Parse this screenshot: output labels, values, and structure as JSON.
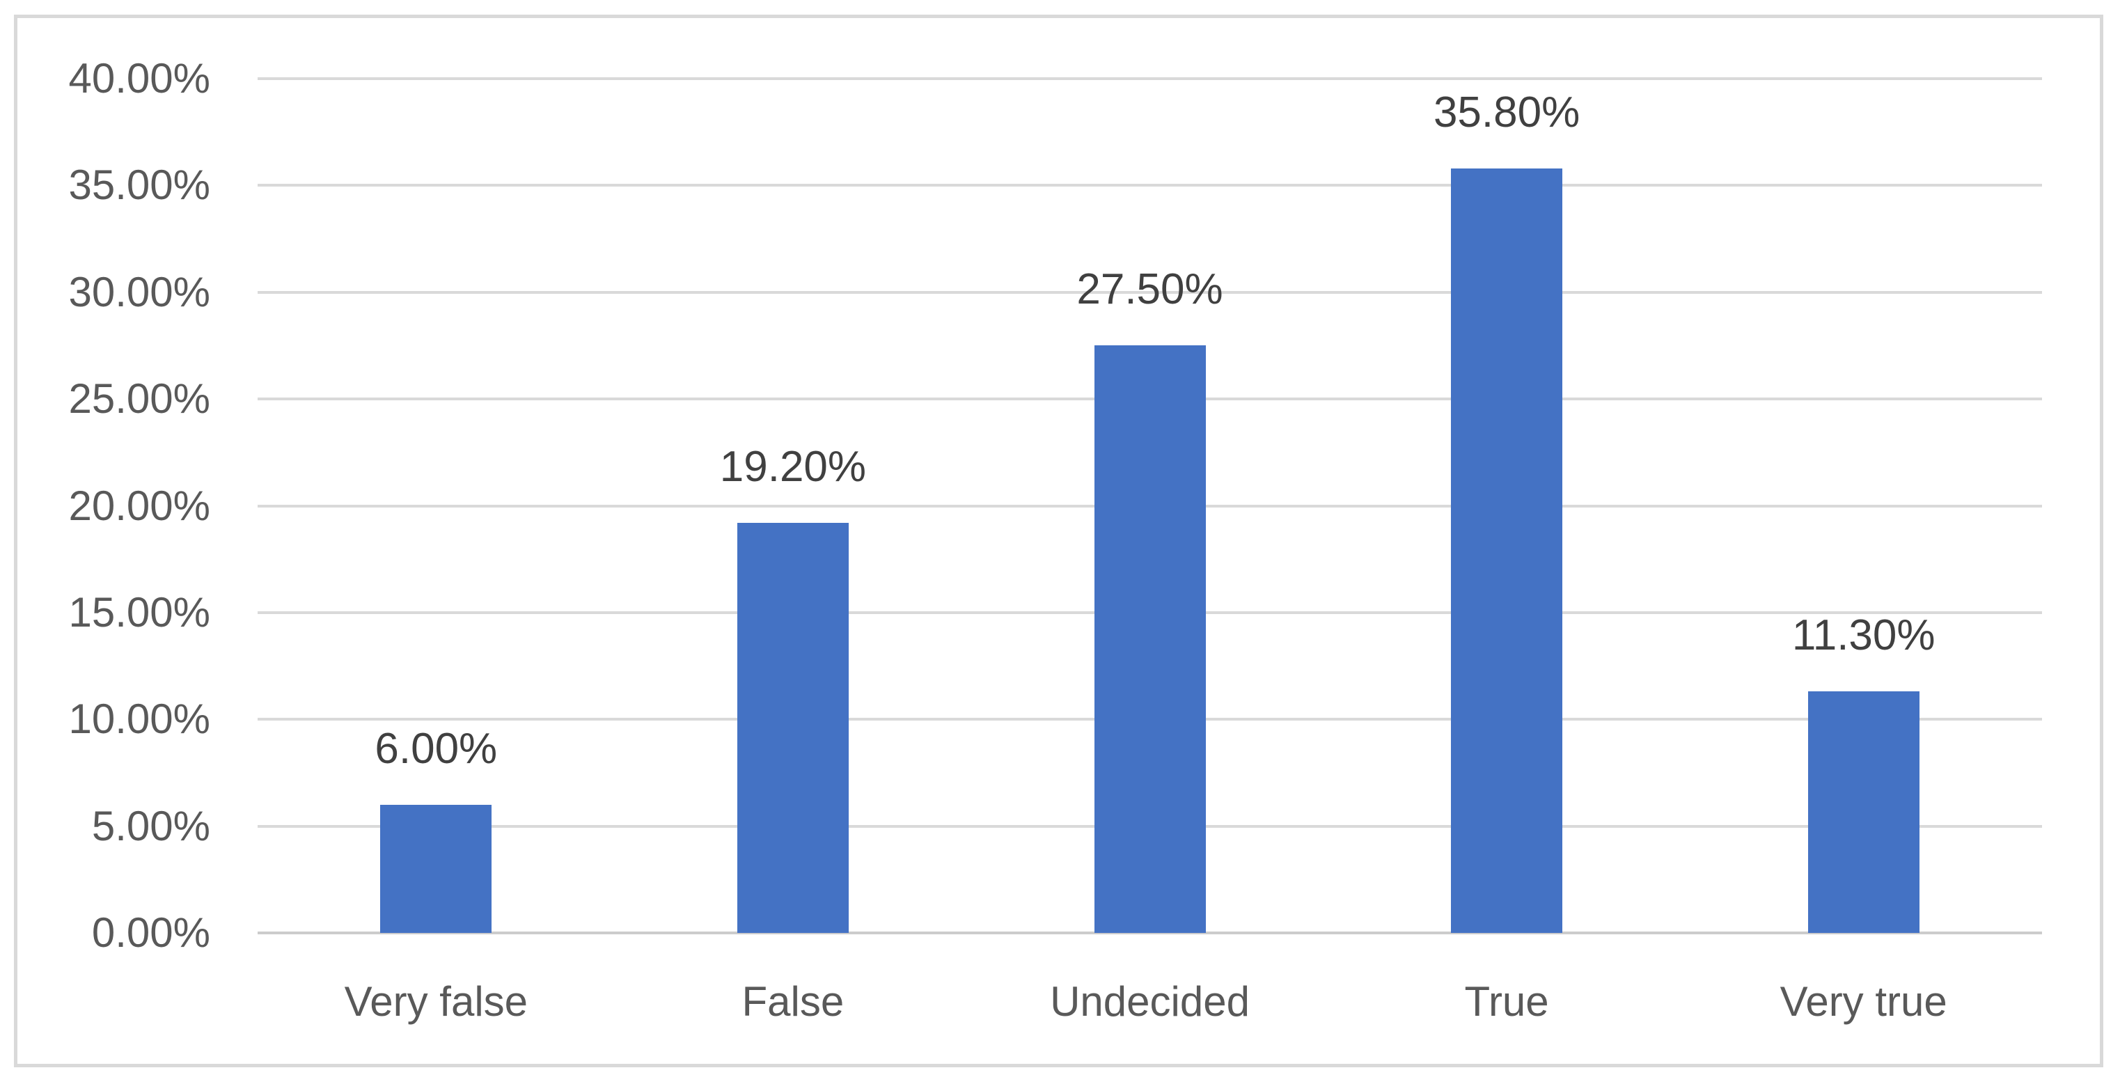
{
  "chart_data": {
    "type": "bar",
    "title": "",
    "xlabel": "",
    "ylabel": "",
    "categories": [
      "Very false",
      "False",
      "Undecided",
      "True",
      "Very true"
    ],
    "values": [
      6.0,
      19.2,
      27.5,
      35.8,
      11.3
    ],
    "data_labels": [
      "6.00%",
      "19.20%",
      "27.50%",
      "35.80%",
      "11.30%"
    ],
    "y_ticks": [
      "0.00%",
      "5.00%",
      "10.00%",
      "15.00%",
      "20.00%",
      "25.00%",
      "30.00%",
      "35.00%",
      "40.00%"
    ],
    "ylim": [
      0,
      40
    ],
    "tick_step": 5,
    "grid": true,
    "legend": "none",
    "colors": {
      "bar_fill": "#4472C4",
      "gridline": "#D9D9D9",
      "axis_line": "#CCCCCC",
      "tick_label": "#595959",
      "category_label": "#595959",
      "data_label": "#404040",
      "chart_border": "#D9D9D9",
      "background": "#FFFFFF"
    }
  }
}
